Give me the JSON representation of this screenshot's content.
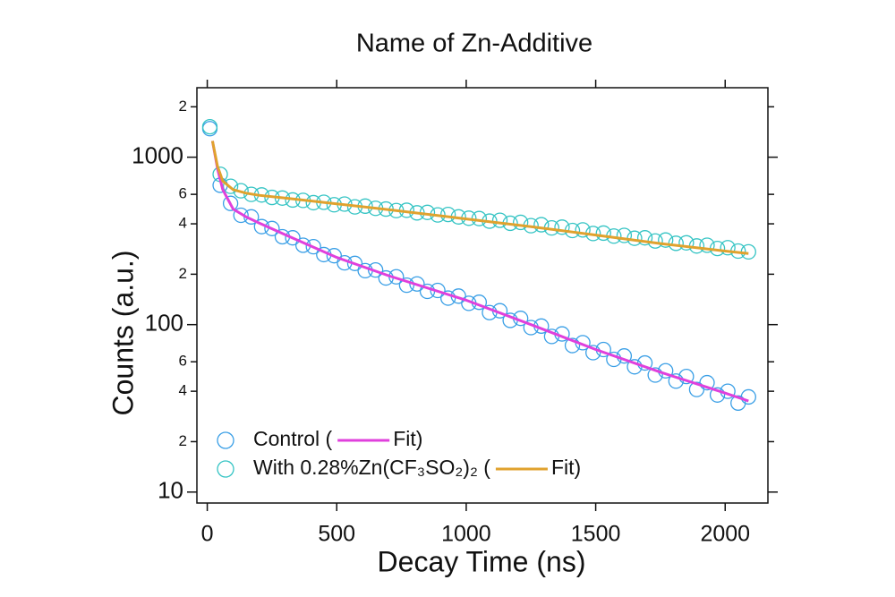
{
  "chart_data": {
    "type": "scatter",
    "title": "Name of Zn-Additive",
    "x_label": "Decay Time (ns)",
    "y_label": "Counts (a.u.)",
    "y_scale": "log",
    "legend": "lower left",
    "grid": false,
    "xlim": [
      -40,
      2165
    ],
    "xticks": [
      0,
      500,
      1000,
      1500,
      2000
    ],
    "ylim": [
      8.6,
      2600
    ],
    "yticks": [
      10,
      {
        "value": 20,
        "label": "2"
      },
      {
        "value": 40,
        "label": "4"
      },
      {
        "value": 60,
        "label": "6"
      },
      100,
      {
        "value": 200,
        "label": "2"
      },
      {
        "value": 400,
        "label": "4"
      },
      {
        "value": 600,
        "label": "6"
      },
      1000,
      {
        "value": 2000,
        "label": "2"
      }
    ],
    "series": [
      {
        "name": "Control (",
        "style": "markers",
        "color": "#3a9fe6",
        "x": [
          10,
          50,
          90,
          130,
          170,
          210,
          250,
          290,
          330,
          370,
          410,
          450,
          490,
          530,
          570,
          610,
          650,
          690,
          730,
          770,
          810,
          850,
          890,
          930,
          970,
          1010,
          1050,
          1090,
          1130,
          1170,
          1210,
          1250,
          1290,
          1330,
          1370,
          1410,
          1450,
          1490,
          1530,
          1570,
          1610,
          1650,
          1690,
          1730,
          1770,
          1810,
          1850,
          1890,
          1930,
          1970,
          2010,
          2050,
          2090
        ],
        "values": [
          1480,
          680,
          530,
          450,
          440,
          385,
          375,
          335,
          330,
          298,
          292,
          262,
          258,
          234,
          232,
          210,
          212,
          190,
          193,
          172,
          175,
          158,
          160,
          144,
          148,
          134,
          136,
          118,
          121,
          106,
          109,
          96,
          98,
          85,
          88,
          75,
          78,
          68,
          71,
          62,
          65,
          56,
          59,
          50,
          53,
          46,
          49,
          41,
          45,
          38,
          40,
          34,
          37
        ]
      },
      {
        "name": "Fit)",
        "style": "line",
        "color": "#e040dc",
        "x": [
          20,
          40,
          60,
          100,
          150,
          200,
          300,
          500,
          700,
          1000,
          1250,
          1500,
          1750,
          2000,
          2090
        ],
        "values": [
          1250,
          850,
          640,
          490,
          440,
          405,
          345,
          252,
          196,
          140,
          100,
          71,
          52,
          39,
          35
        ]
      },
      {
        "name": "With 0.28%Zn(CF₃SO₂)₂ (",
        "style": "markers",
        "color": "#35c4c4",
        "x": [
          10,
          50,
          90,
          130,
          170,
          210,
          250,
          290,
          330,
          370,
          410,
          450,
          490,
          530,
          570,
          610,
          650,
          690,
          730,
          770,
          810,
          850,
          890,
          930,
          970,
          1010,
          1050,
          1090,
          1130,
          1170,
          1210,
          1250,
          1290,
          1330,
          1370,
          1410,
          1450,
          1490,
          1530,
          1570,
          1610,
          1650,
          1690,
          1730,
          1770,
          1810,
          1850,
          1890,
          1930,
          1970,
          2010,
          2050,
          2090
        ],
        "values": [
          1520,
          790,
          670,
          630,
          600,
          595,
          575,
          570,
          555,
          552,
          535,
          538,
          520,
          525,
          505,
          510,
          495,
          490,
          480,
          482,
          465,
          468,
          452,
          455,
          440,
          432,
          430,
          415,
          420,
          403,
          408,
          390,
          395,
          378,
          382,
          365,
          368,
          350,
          352,
          338,
          341,
          328,
          330,
          316,
          320,
          306,
          308,
          295,
          298,
          285,
          288,
          275,
          272
        ]
      },
      {
        "name": "Fit)",
        "style": "line",
        "color": "#e0a22e",
        "x": [
          20,
          40,
          60,
          100,
          150,
          200,
          300,
          500,
          700,
          1000,
          1250,
          1500,
          1750,
          2000,
          2090
        ],
        "values": [
          1250,
          880,
          720,
          640,
          610,
          592,
          570,
          527,
          486,
          428,
          385,
          343,
          305,
          275,
          266
        ]
      }
    ]
  }
}
